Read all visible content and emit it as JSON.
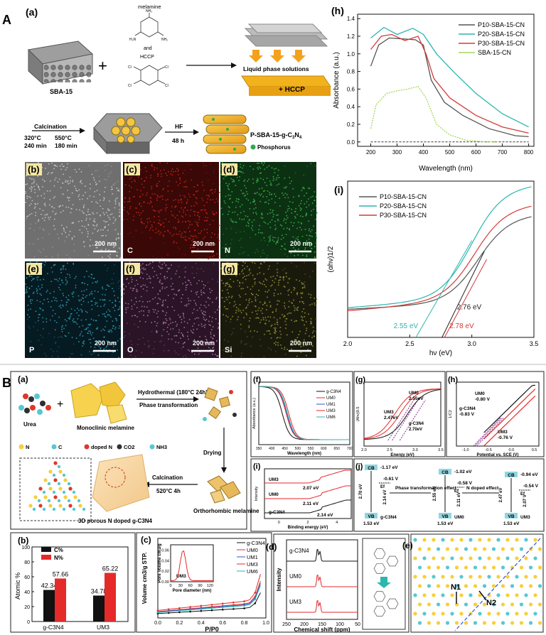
{
  "figure_a": {
    "section_letter": "A",
    "panel_a": {
      "label": "(a)",
      "melamine": "melamine",
      "and": "and",
      "hccp": "HCCP",
      "sba15": "SBA-15",
      "liquid_phase": "Liquid phase solutions",
      "hccp_plus": "+  HCCP",
      "calcination": "Calcination",
      "t1": "320°C",
      "t1time": "240 min",
      "t2": "550°C",
      "t2time": "180 min",
      "hf": "HF",
      "hf_time": "48 h",
      "product_pre": "P-SBA-15-g-C",
      "product_sub": "3",
      "product_mid": "N",
      "product_sub2": "4",
      "phosphorus": "Phosphorus"
    },
    "maps": [
      {
        "label": "(b)",
        "element": "",
        "scale": "200 nm",
        "bg": "#6f6f6f",
        "dot": "#c9c9c9"
      },
      {
        "label": "(c)",
        "element": "C",
        "scale": "200 nm",
        "bg": "#3a0806",
        "dot": "#c8241c"
      },
      {
        "label": "(d)",
        "element": "N",
        "scale": "200 nm",
        "bg": "#0c3112",
        "dot": "#3fb551"
      },
      {
        "label": "(e)",
        "element": "P",
        "scale": "200 nm",
        "bg": "#061a22",
        "dot": "#2ea2b6"
      },
      {
        "label": "(f)",
        "element": "O",
        "scale": "200 nm",
        "bg": "#2a1426",
        "dot": "#b07aa8"
      },
      {
        "label": "(g)",
        "element": "Si",
        "scale": "200 nm",
        "bg": "#1a1a0c",
        "dot": "#9d9b3a"
      }
    ],
    "panel_h": {
      "label": "(h)",
      "xlabel": "Wavelength (nm)",
      "ylabel": "Absorbance (a.u.)",
      "xticks": [
        "200",
        "300",
        "400",
        "500",
        "600",
        "700",
        "800"
      ],
      "yticks": [
        "0.0",
        "0.2",
        "0.4",
        "0.6",
        "0.8",
        "1.0",
        "1.2",
        "1.4"
      ],
      "legend": [
        "P10-SBA-15-CN",
        "P20-SBA-15-CN",
        "P30-SBA-15-CN",
        "SBA-15-CN"
      ]
    },
    "panel_i": {
      "label": "(i)",
      "xlabel": "hν (eV)",
      "ylabel": "(αhν)1/2",
      "xticks": [
        "2.0",
        "2.5",
        "3.0",
        "3.5"
      ],
      "legend": [
        "P10-SBA-15-CN",
        "P20-SBA-15-CN",
        "P30-SBA-15-CN"
      ],
      "annotations": [
        "2.55 eV",
        "2.76 eV",
        "2.78 eV"
      ]
    }
  },
  "figure_b": {
    "section_letter": "B",
    "panel_a": {
      "label": "(a)",
      "urea": "Urea",
      "monoclinic": "Monoclinic melamine",
      "hydrothermal": "Hydrothermal (180°C 24h)",
      "phase": "Phase transformation",
      "drying": "Drying",
      "ortho": "Orthorhombic melamine",
      "calc": "Calcination",
      "calc_cond": "520°C 4h",
      "porous": "3D porous N doped g-C3N4",
      "key": [
        "N",
        "C",
        "doped N",
        "CO2",
        "NH3"
      ]
    },
    "panel_b": {
      "label": "(b)",
      "ylabel": "Atomic %",
      "legend": [
        "C%",
        "N%"
      ],
      "values": [
        "42.34",
        "57.66",
        "34.78",
        "65.22"
      ],
      "cats": [
        "g-C3N4",
        "UM3"
      ],
      "yticks": [
        "0",
        "20",
        "40",
        "60",
        "80",
        "100"
      ]
    },
    "panel_c": {
      "label": "(c)",
      "ylabel": "Volume cm3/g STP.",
      "xlabel": "P/P0",
      "legend": [
        "g-C3N4",
        "UM0",
        "UM1",
        "UM3",
        "UM6"
      ],
      "inset_ylabel": "Pore Volume cm3/g",
      "inset_xlabel": "Pore diameter (nm)",
      "inset_tag": "UM3",
      "inset_yticks": [
        "0.00",
        "0.02",
        "0.04",
        "0.06"
      ],
      "inset_xticks": [
        "0",
        "30",
        "60",
        "90",
        "120"
      ],
      "xticks": [
        "0.0",
        "0.2",
        "0.4",
        "0.6",
        "0.8",
        "1.0"
      ]
    },
    "panel_d": {
      "label": "(d)",
      "ylabel": "Intensity",
      "xlabel": "Chemical shift (ppm)",
      "traces": [
        "g-C3N4",
        "UM0",
        "UM3"
      ],
      "xticks": [
        "250",
        "200",
        "150",
        "100",
        "50"
      ]
    },
    "panel_e": {
      "label": "(e)",
      "n1": "N1",
      "n2": "N2"
    },
    "panel_f": {
      "label": "(f)",
      "xlabel": "Wavelength (nm)",
      "ylabel": "Absorbance (a.u.)",
      "legend": [
        "g-C3N4",
        "UM0",
        "UM1",
        "UM3",
        "UM6"
      ],
      "xticks": [
        "350",
        "400",
        "450",
        "500",
        "550",
        "600",
        "650",
        "700"
      ]
    },
    "panel_g": {
      "label": "(g)",
      "xlabel": "Energy (eV)",
      "ylabel": "(Ahv)0.5",
      "ann": [
        "UM0",
        "2.55eV",
        "UM3",
        "2.47eV",
        "g-C3N4",
        "2.70eV"
      ],
      "xticks": [
        "2.0",
        "2.5",
        "3.0",
        "3.5"
      ]
    },
    "panel_h": {
      "label": "(h)",
      "xlabel": "Potential vs. SCE (V)",
      "ylabel": "1/C2",
      "ann": [
        "UM0",
        "-0.80 V",
        "g-C3N4",
        "-0.83 V",
        "UM3",
        "-0.76 V"
      ],
      "xticks": [
        "-1.0",
        "-0.5",
        "0.0",
        "0.5"
      ]
    },
    "panel_i": {
      "label": "(i)",
      "xlabel": "Binding energy (eV)",
      "ylabel": "Intensity",
      "ann": [
        "UM3",
        "2.07 eV",
        "UM0",
        "2.11 eV",
        "g-C3N4",
        "2.14 eV"
      ],
      "xticks": [
        "0",
        "2",
        "4"
      ]
    },
    "panel_j": {
      "label": "(j)",
      "cb": "CB",
      "vb": "VB",
      "ef": "Ef",
      "g_cb": "-1.17 eV",
      "g_ef": "-0.61 V",
      "g_gap": "2.70 eV",
      "g_gap2": "2.14 eV",
      "g_vb": "1.53 eV",
      "g_name": "g-C3N4",
      "phase_effect": "Phase transformation effect",
      "n_effect": "N doped effect",
      "m_cb": "-1.02 eV",
      "m_ef": "-0.58 V",
      "m_gap": "2.55 eV",
      "m_gap2": "2.11 eV",
      "m_vb": "1.53 eV",
      "m_name": "UM0",
      "u_cb": "-0.94 eV",
      "u_ef": "-0.54 V",
      "u_gap": "2.47 eV",
      "u_gap2": "2.07 V",
      "u_vb": "1.53 eV",
      "u_name": "UM3"
    }
  }
}
